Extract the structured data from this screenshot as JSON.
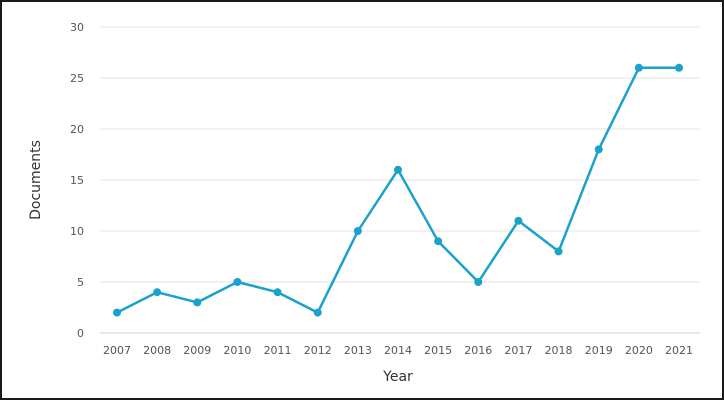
{
  "chart_data": {
    "type": "line",
    "title": "",
    "xlabel": "Year",
    "ylabel": "Documents",
    "categories": [
      "2007",
      "2008",
      "2009",
      "2010",
      "2011",
      "2012",
      "2013",
      "2014",
      "2015",
      "2016",
      "2017",
      "2018",
      "2019",
      "2020",
      "2021"
    ],
    "series": [
      {
        "values": [
          2,
          4,
          3,
          5,
          4,
          2,
          10,
          16,
          9,
          5,
          11,
          8,
          18,
          26,
          26
        ],
        "color": "#1aa1cc"
      }
    ],
    "ylim": [
      0,
      30
    ],
    "yticks": [
      "0",
      "5",
      "10",
      "15",
      "20",
      "25",
      "30"
    ],
    "grid": true,
    "legend": "none"
  }
}
